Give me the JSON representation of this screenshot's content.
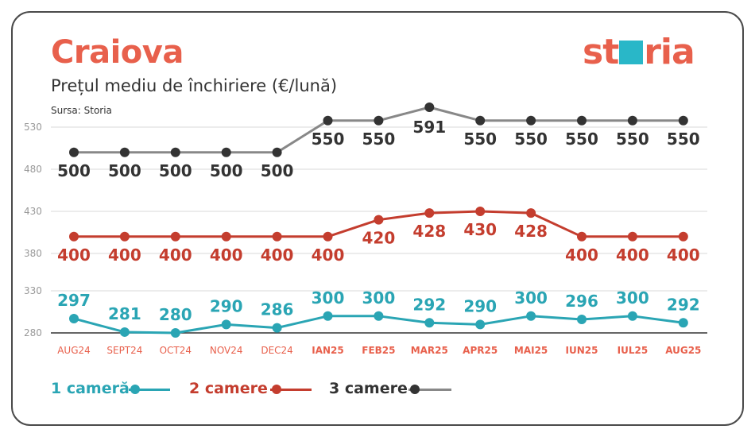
{
  "header": {
    "title": "Craiova",
    "subtitle": "Prețul mediu de închiriere (€/lună)",
    "source": "Sursa: Storia",
    "logo": "storia"
  },
  "colors": {
    "accent": "#e8604c",
    "text_dark": "#333333",
    "grid": "#d9d9d9",
    "axis_label": "#999999"
  },
  "chart_data": {
    "type": "line",
    "title": "Prețul mediu de închiriere (€/lună)",
    "categories": [
      "AUG24",
      "SEPT24",
      "OCT24",
      "NOV24",
      "DEC24",
      "IAN25",
      "FEB25",
      "MAR25",
      "APR25",
      "MAI25",
      "IUN25",
      "IUL25",
      "AUG25"
    ],
    "y_ticks": [
      280,
      330,
      380,
      430,
      480,
      530
    ],
    "ylim": [
      280,
      590
    ],
    "grid": true,
    "legend_position": "bottom-left",
    "series": [
      {
        "name": "1 cameră",
        "color": "#2aa5b4",
        "values": [
          297,
          281,
          280,
          290,
          286,
          300,
          300,
          292,
          290,
          300,
          296,
          300,
          292
        ]
      },
      {
        "name": "2 camere",
        "color": "#c43d2e",
        "values": [
          400,
          400,
          400,
          400,
          400,
          400,
          420,
          428,
          430,
          428,
          400,
          400,
          400
        ]
      },
      {
        "name": "3 camere",
        "color": "#333333",
        "line_color": "#888888",
        "values": [
          500,
          500,
          500,
          500,
          500,
          550,
          550,
          591,
          550,
          550,
          550,
          550,
          550
        ]
      }
    ]
  }
}
